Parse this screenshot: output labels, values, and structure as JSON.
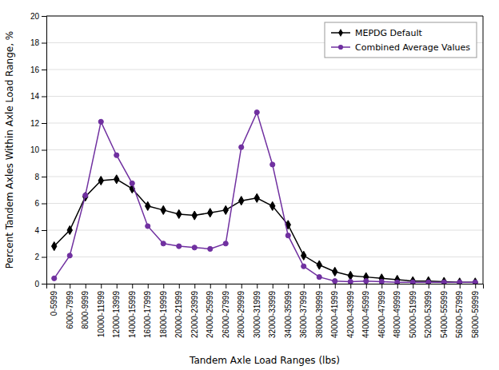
{
  "chart_data": {
    "type": "line",
    "categories": [
      "0-5999",
      "6000-7999",
      "8000-9999",
      "10000-11999",
      "12000-13999",
      "14000-15999",
      "16000-17999",
      "18000-19999",
      "20000-21999",
      "22000-23999",
      "24000-25999",
      "26000-27999",
      "28000-29999",
      "30000-31999",
      "32000-33999",
      "34000-35999",
      "36000-37999",
      "38000-39999",
      "40000-41999",
      "42000-43999",
      "44000-45999",
      "46000-47999",
      "48000-49999",
      "50000-51999",
      "52000-53999",
      "54000-55999",
      "56000-57999",
      "58000-59999"
    ],
    "series": [
      {
        "name": "MEPDG Default",
        "color": "#000000",
        "marker": "diamond",
        "values": [
          2.8,
          4.0,
          6.5,
          7.7,
          7.8,
          7.1,
          5.8,
          5.5,
          5.2,
          5.1,
          5.3,
          5.5,
          6.2,
          6.4,
          5.8,
          4.4,
          2.1,
          1.4,
          0.9,
          0.6,
          0.5,
          0.4,
          0.3,
          0.2,
          0.2,
          0.15,
          0.1,
          0.1
        ]
      },
      {
        "name": "Combined Average Values",
        "color": "#7030a0",
        "marker": "circle",
        "values": [
          0.4,
          2.1,
          6.6,
          12.1,
          9.6,
          7.5,
          4.3,
          3.0,
          2.8,
          2.7,
          2.6,
          3.0,
          10.2,
          12.8,
          8.9,
          3.6,
          1.3,
          0.5,
          0.2,
          0.15,
          0.2,
          0.15,
          0.1,
          0.1,
          0.1,
          0.1,
          0.1,
          0.1
        ]
      }
    ],
    "xlabel": "Tandem Axle Load Ranges (lbs)",
    "ylabel": "Percent Tandem Axles Within Axle Load Range, %",
    "ylim": [
      0,
      20
    ],
    "yticks": [
      0,
      2,
      4,
      6,
      8,
      10,
      12,
      14,
      16,
      18,
      20
    ],
    "grid": true,
    "legend": "upper right"
  }
}
